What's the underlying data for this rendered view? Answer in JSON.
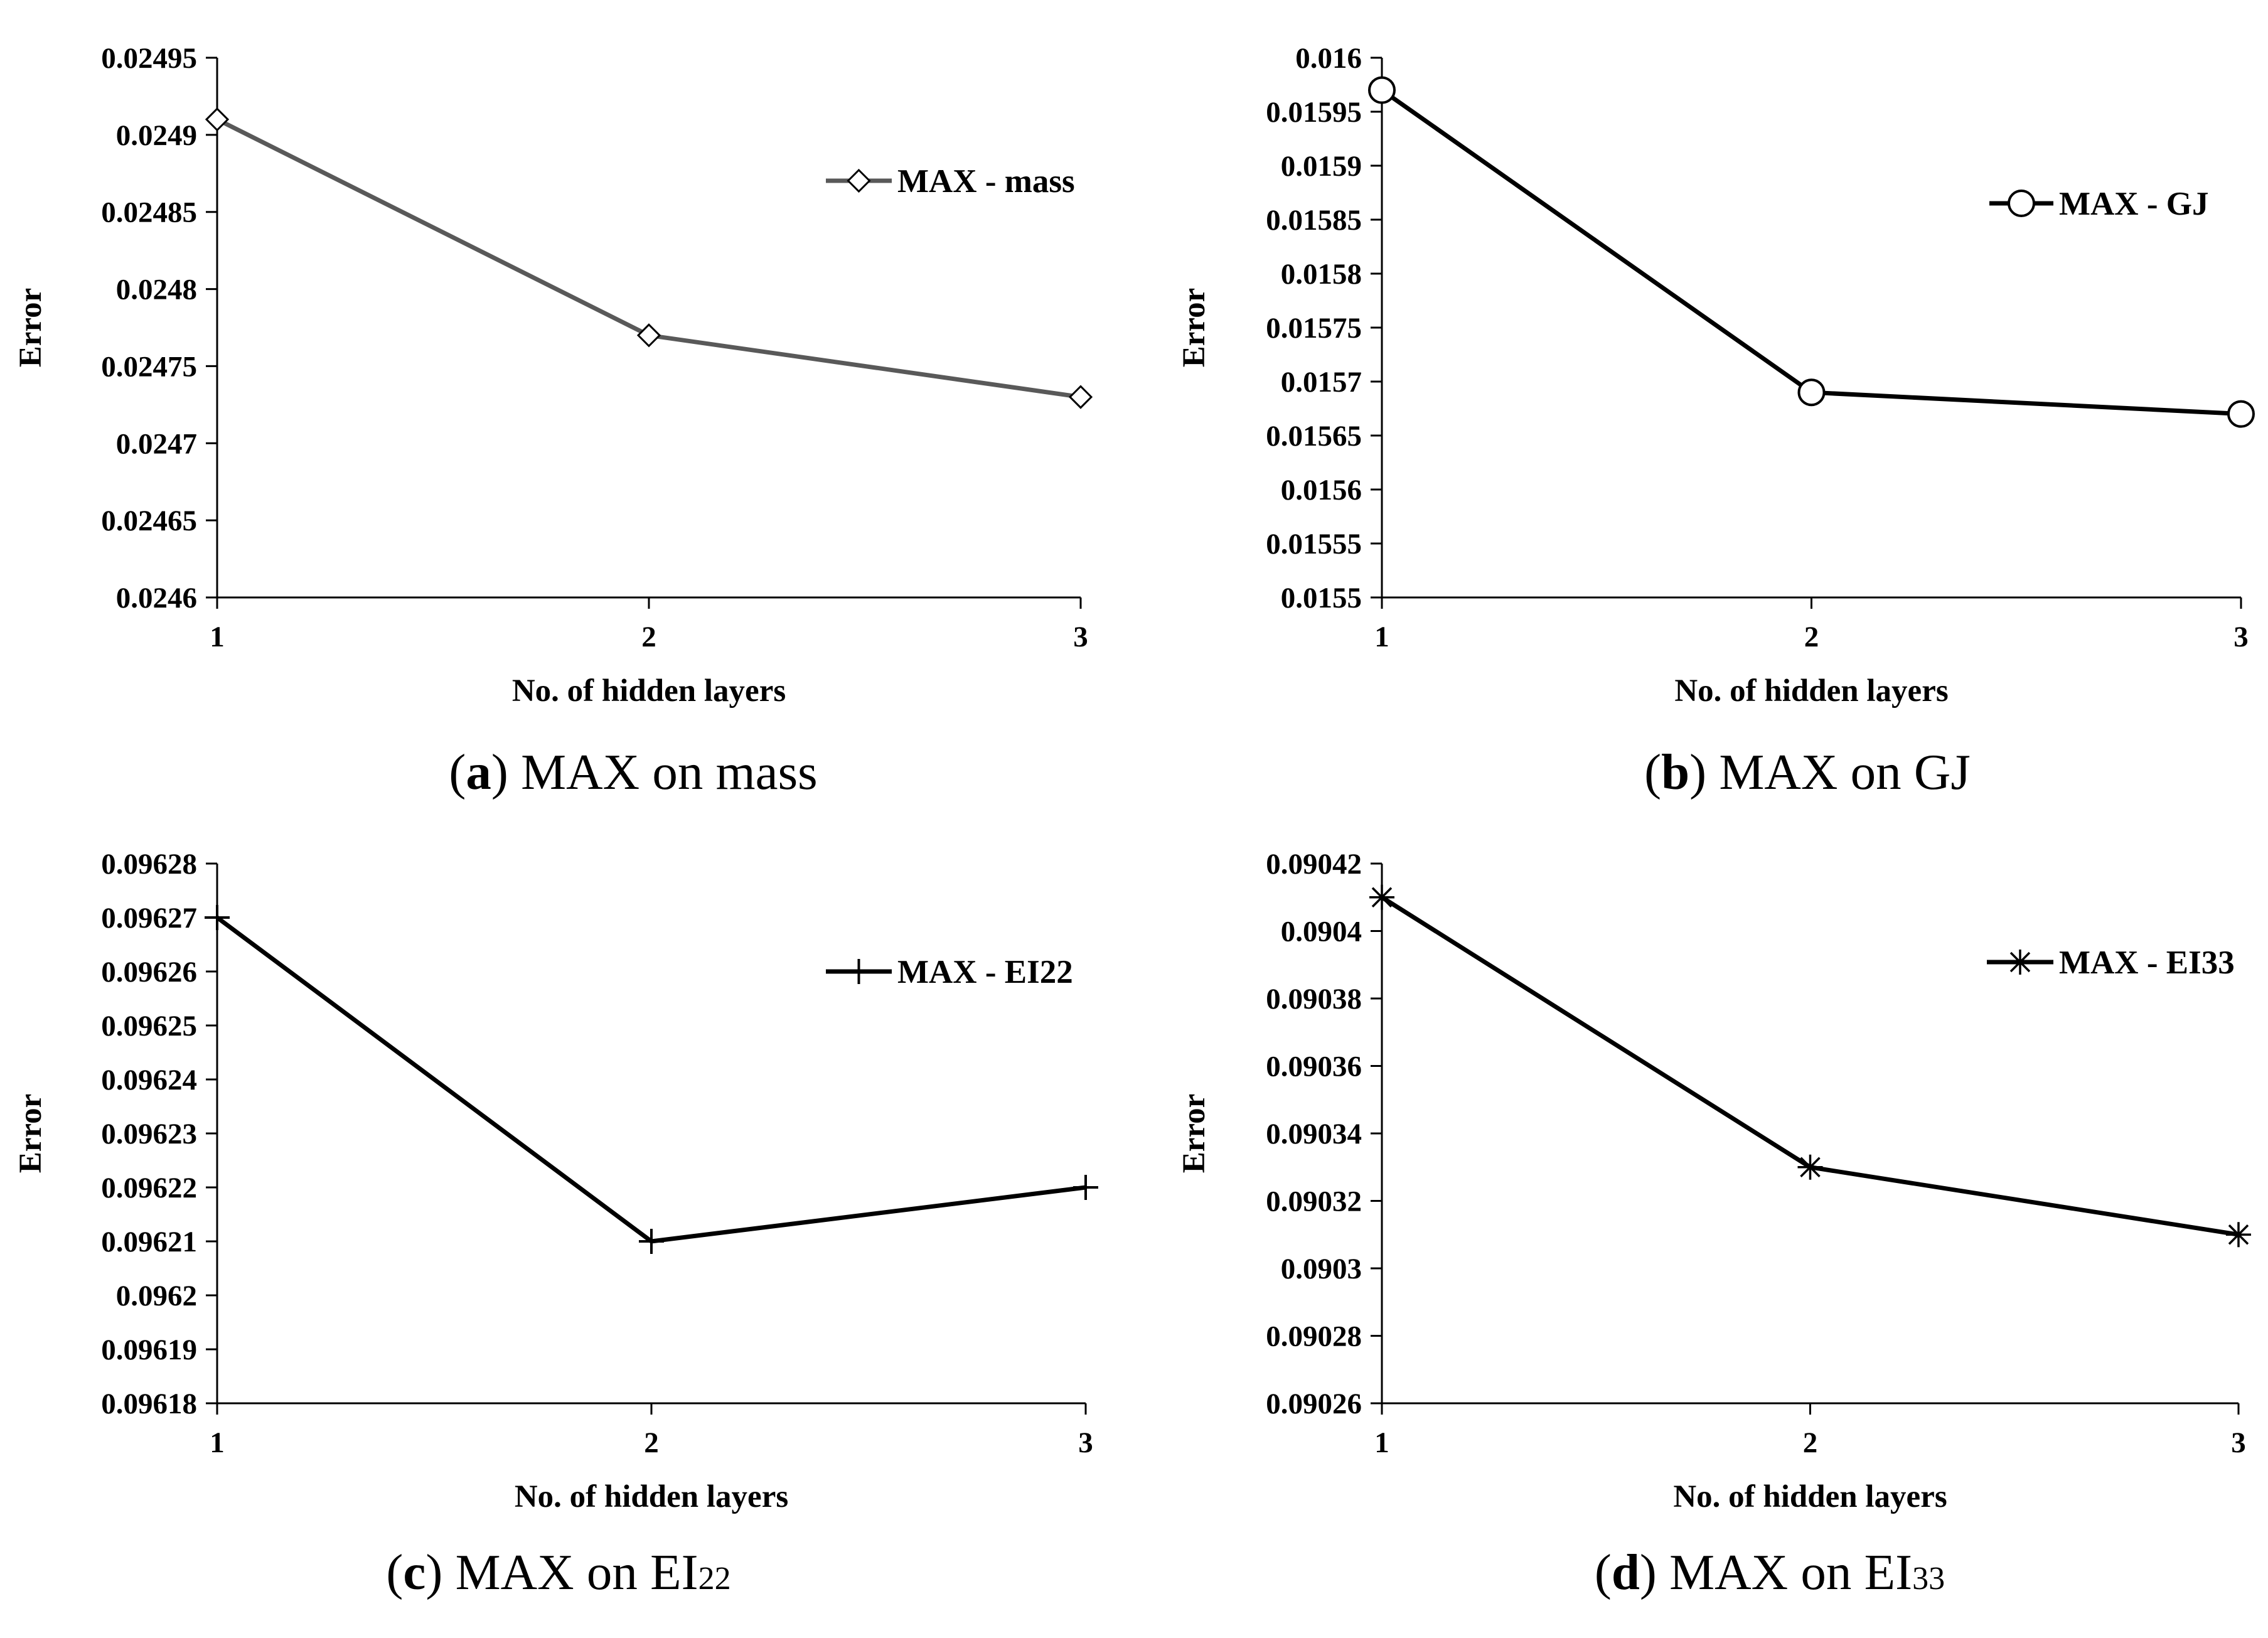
{
  "chart_data": [
    {
      "type": "line",
      "id": "a",
      "caption_letter": "a",
      "caption_text": "MAX on mass",
      "caption_sub": "",
      "xlabel": "No. of hidden layers",
      "ylabel": "Error",
      "x": [
        1,
        2,
        3
      ],
      "x_tick_labels": [
        "1",
        "2",
        "3"
      ],
      "ylim": [
        0.0246,
        0.02495
      ],
      "y_tick_labels": [
        "0.0246",
        "0.02465",
        "0.0247",
        "0.02475",
        "0.0248",
        "0.02485",
        "0.0249",
        "0.02495"
      ],
      "legend_position": "top-right",
      "series": [
        {
          "name": "MAX - mass",
          "values": [
            0.02491,
            0.02477,
            0.02473
          ],
          "marker": "diamond",
          "color": "#595959"
        }
      ]
    },
    {
      "type": "line",
      "id": "b",
      "caption_letter": "b",
      "caption_text": "MAX on GJ",
      "caption_sub": "",
      "xlabel": "No. of hidden layers",
      "ylabel": "Error",
      "x": [
        1,
        2,
        3
      ],
      "x_tick_labels": [
        "1",
        "2",
        "3"
      ],
      "ylim": [
        0.0155,
        0.016
      ],
      "y_tick_labels": [
        "0.0155",
        "0.01555",
        "0.0156",
        "0.01565",
        "0.0157",
        "0.01575",
        "0.0158",
        "0.01585",
        "0.0159",
        "0.01595",
        "0.016"
      ],
      "legend_position": "top-right",
      "series": [
        {
          "name": "MAX - GJ",
          "values": [
            0.01597,
            0.01569,
            0.01567
          ],
          "marker": "circle",
          "color": "#000000"
        }
      ]
    },
    {
      "type": "line",
      "id": "c",
      "caption_letter": "c",
      "caption_text": "MAX on EI",
      "caption_sub": "22",
      "xlabel": "No. of hidden layers",
      "ylabel": "Error",
      "x": [
        1,
        2,
        3
      ],
      "x_tick_labels": [
        "1",
        "2",
        "3"
      ],
      "ylim": [
        0.09618,
        0.09628
      ],
      "y_tick_labels": [
        "0.09618",
        "0.09619",
        "0.0962",
        "0.09621",
        "0.09622",
        "0.09623",
        "0.09624",
        "0.09625",
        "0.09626",
        "0.09627",
        "0.09628"
      ],
      "legend_position": "top-right",
      "series": [
        {
          "name": "MAX - EI22",
          "values": [
            0.09627,
            0.09621,
            0.09622
          ],
          "marker": "plus",
          "color": "#000000"
        }
      ]
    },
    {
      "type": "line",
      "id": "d",
      "caption_letter": "d",
      "caption_text": "MAX on EI",
      "caption_sub": "33",
      "xlabel": "No. of hidden layers",
      "ylabel": "Error",
      "x": [
        1,
        2,
        3
      ],
      "x_tick_labels": [
        "1",
        "2",
        "3"
      ],
      "ylim": [
        0.09026,
        0.09042
      ],
      "y_tick_labels": [
        "0.09026",
        "0.09028",
        "0.0903",
        "0.09032",
        "0.09034",
        "0.09036",
        "0.09038",
        "0.0904",
        "0.09042"
      ],
      "legend_position": "top-right",
      "series": [
        {
          "name": "MAX - EI33",
          "values": [
            0.09041,
            0.09033,
            0.09031
          ],
          "marker": "asterisk",
          "color": "#000000"
        }
      ]
    }
  ]
}
